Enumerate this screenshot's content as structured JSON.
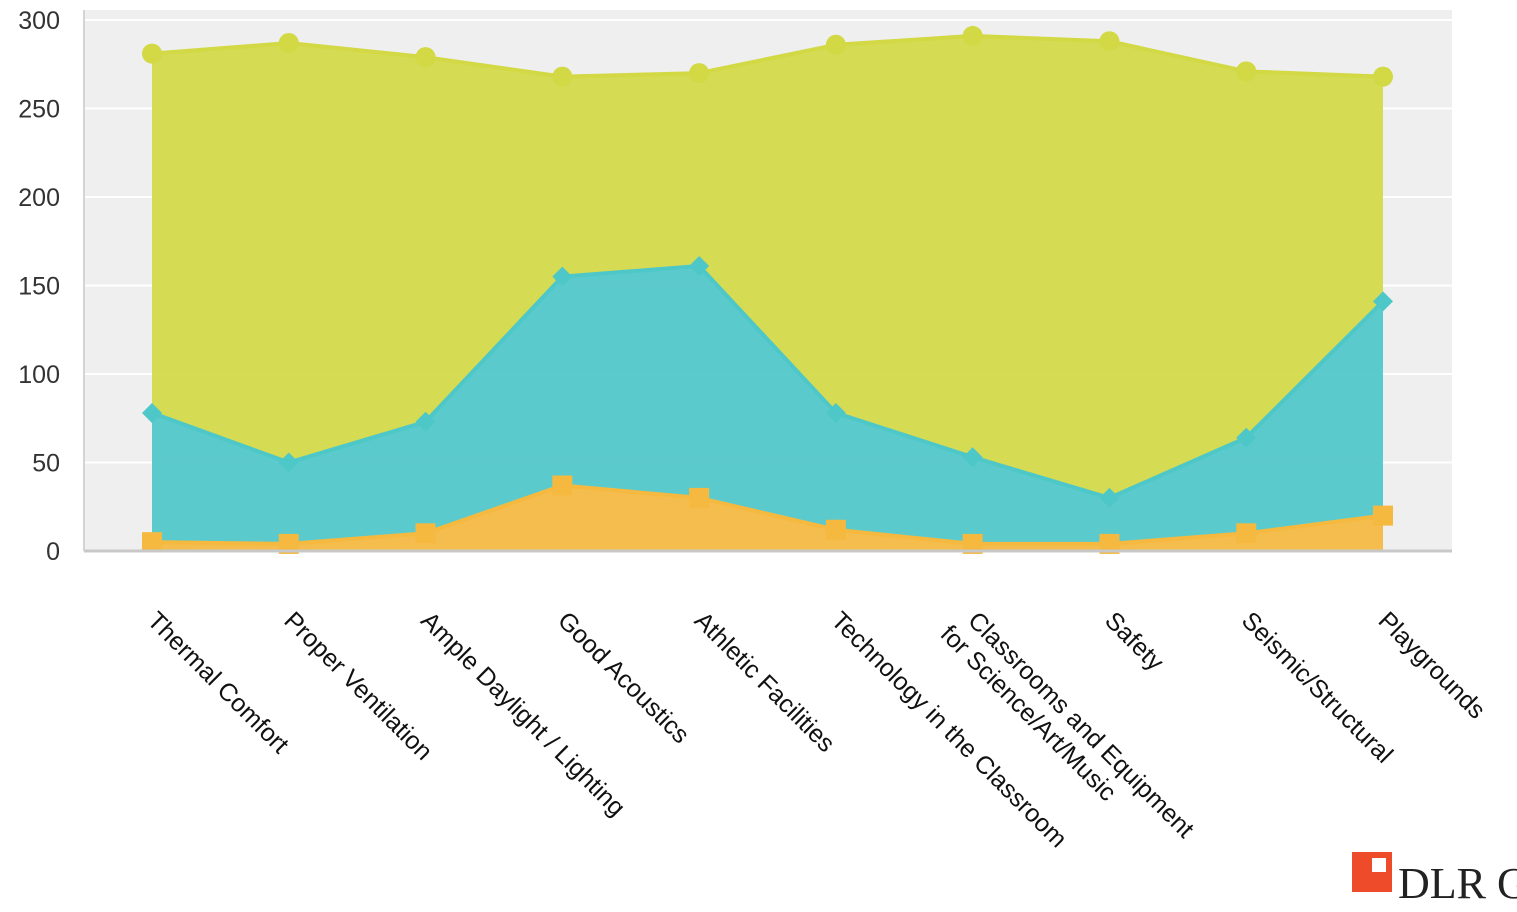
{
  "chart_data": {
    "type": "area",
    "stacked": true,
    "categories": [
      "Thermal Comfort",
      "Proper Ventilation",
      "Ample Daylight / Lighting",
      "Good Acoustics",
      "Athletic Facilities",
      "Technology in the Classroom",
      "Classrooms and Equipment\nfor Science/Art/Music",
      "Safety",
      "Seismic/Structural",
      "Playgrounds"
    ],
    "series": [
      {
        "color": "#f5b940",
        "marker": "square",
        "values": [
          5,
          4,
          10,
          37,
          30,
          12,
          4,
          4,
          10,
          20
        ]
      },
      {
        "color": "#4ec7c9",
        "marker": "diamond",
        "values": [
          73,
          46,
          63,
          118,
          131,
          66,
          49,
          26,
          54,
          121
        ]
      },
      {
        "color": "#d2d944",
        "marker": "circle",
        "values": [
          203,
          237,
          206,
          113,
          109,
          208,
          238,
          258,
          207,
          127
        ]
      }
    ],
    "ylim": [
      0,
      300
    ],
    "yticks": [
      0,
      50,
      100,
      150,
      200,
      250,
      300
    ],
    "grid": true,
    "title": "",
    "xlabel": "",
    "ylabel": ""
  },
  "logo": {
    "text": "DLR G"
  }
}
